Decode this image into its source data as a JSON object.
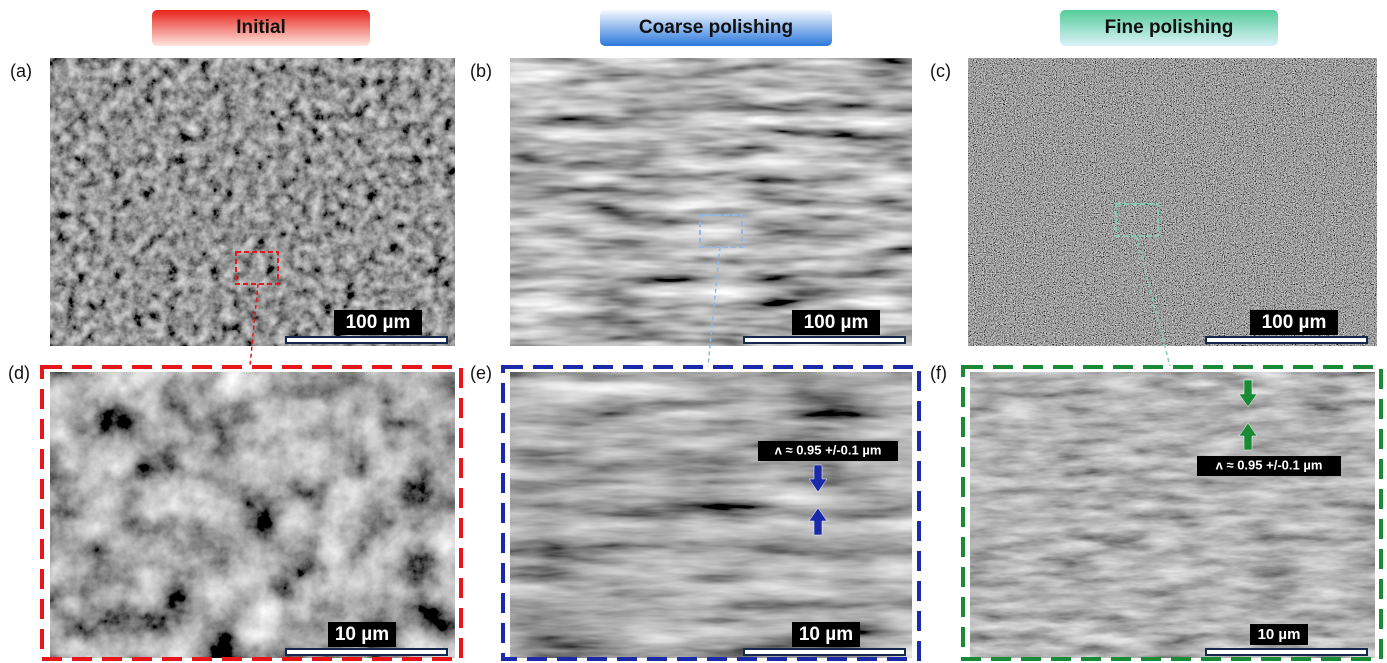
{
  "headers": [
    "Initial",
    "Coarse polishing",
    "Fine polishing"
  ],
  "panels": [
    {
      "label": "(a)",
      "scale_bar": "100 µm"
    },
    {
      "label": "(b)",
      "scale_bar": "100 µm"
    },
    {
      "label": "(c)",
      "scale_bar": "100 µm"
    },
    {
      "label": "(d)",
      "scale_bar": "10 µm"
    },
    {
      "label": "(e)",
      "scale_bar": "10 µm",
      "annotation": "ʌ ≈ 0.95 +/-0.1 µm"
    },
    {
      "label": "(f)",
      "scale_bar": "10 µm",
      "annotation": "ʌ ≈ 0.95 +/-0.1 µm"
    }
  ]
}
